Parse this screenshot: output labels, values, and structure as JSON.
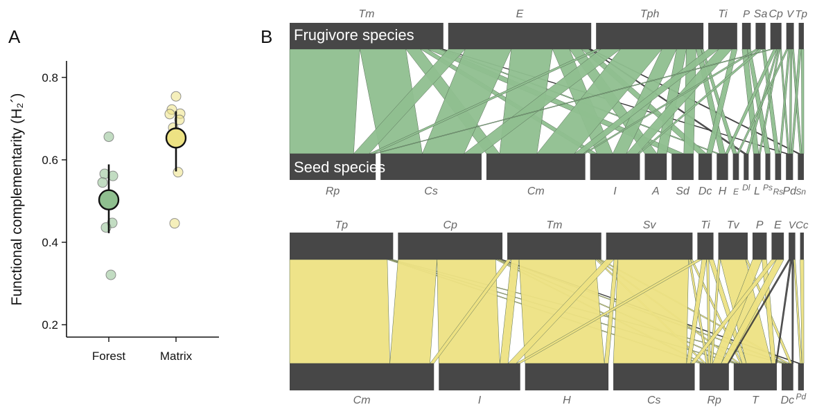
{
  "panel_a_letter": "A",
  "panel_b_letter": "B",
  "frugivore_label": "Frugivore species",
  "seed_label": "Seed species",
  "chart_data": [
    {
      "type": "scatter",
      "ylabel_text": "Functional complementarity",
      "ylabel_math": "(H₂´)",
      "categories": [
        "Forest",
        "Matrix"
      ],
      "ylim": [
        0.17,
        0.84
      ],
      "yticks": [
        0.2,
        0.4,
        0.6,
        0.8
      ],
      "grid": false,
      "series": [
        {
          "category": "Forest",
          "color": "#8fbf8f",
          "points": [
            0.656,
            0.566,
            0.561,
            0.545,
            0.447,
            0.436,
            0.321
          ],
          "mean": 0.503,
          "lower": 0.422,
          "upper": 0.589
        },
        {
          "category": "Matrix",
          "color": "#ede283",
          "points": [
            0.754,
            0.722,
            0.712,
            0.711,
            0.697,
            0.678,
            0.57,
            0.446
          ],
          "mean": 0.653,
          "lower": 0.572,
          "upper": 0.718
        }
      ]
    },
    {
      "type": "bipartite",
      "habitat": "Forest",
      "link_color": "#8fbf8f",
      "top_species": [
        "Tm",
        "E",
        "Tph",
        "Ti",
        "P",
        "Sa",
        "Cp",
        "V",
        "Tp"
      ],
      "bottom_species": [
        "Rp",
        "Cs",
        "Cm",
        "I",
        "A",
        "Sd",
        "Dc",
        "H",
        "E",
        "Dl",
        "L",
        "Ps",
        "Rs",
        "Pd",
        "Sn"
      ],
      "links": [
        [
          "Tm",
          "Rp",
          58
        ],
        [
          "Tm",
          "Cs",
          38
        ],
        [
          "Tm",
          "Cm",
          12
        ],
        [
          "Tm",
          "Sd",
          10
        ],
        [
          "Tm",
          "I",
          6
        ],
        [
          "Tm",
          "H",
          2
        ],
        [
          "Tm",
          "Pd",
          1
        ],
        [
          "E",
          "Cs",
          38
        ],
        [
          "E",
          "Rp",
          14
        ],
        [
          "E",
          "Cm",
          34
        ],
        [
          "E",
          "I",
          14
        ],
        [
          "E",
          "A",
          10
        ],
        [
          "E",
          "Dc",
          6
        ],
        [
          "E",
          "Sn",
          1
        ],
        [
          "E",
          "Dl",
          1
        ],
        [
          "Tph",
          "Cm",
          34
        ],
        [
          "Tph",
          "Cs",
          16
        ],
        [
          "Tph",
          "I",
          12
        ],
        [
          "Tph",
          "A",
          8
        ],
        [
          "Tph",
          "Sd",
          8
        ],
        [
          "Tph",
          "H",
          4
        ],
        [
          "Tph",
          "E",
          2
        ],
        [
          "Tph",
          "Rp",
          4
        ],
        [
          "Ti",
          "I",
          10
        ],
        [
          "Ti",
          "Cm",
          8
        ],
        [
          "Ti",
          "Dc",
          4
        ],
        [
          "P",
          "L",
          3
        ],
        [
          "P",
          "Ps",
          2
        ],
        [
          "Sa",
          "Cm",
          2
        ],
        [
          "Sa",
          "I",
          2
        ],
        [
          "Sa",
          "Rs",
          2
        ],
        [
          "Cp",
          "Rp",
          2
        ],
        [
          "Cp",
          "H",
          2
        ],
        [
          "Cp",
          "Dl",
          1
        ],
        [
          "Cp",
          "L",
          1
        ],
        [
          "Cp",
          "Pd",
          1
        ],
        [
          "V",
          "E",
          1
        ],
        [
          "V",
          "Rs",
          1
        ],
        [
          "V",
          "Pd",
          1
        ],
        [
          "V",
          "Sn",
          1
        ],
        [
          "Tp",
          "Pd",
          1
        ],
        [
          "Tp",
          "Sn",
          1
        ]
      ]
    },
    {
      "type": "bipartite",
      "habitat": "Matrix",
      "link_color": "#ede283",
      "top_species": [
        "Tp",
        "Cp",
        "Tm",
        "Sv",
        "Ti",
        "Tv",
        "P",
        "E",
        "V",
        "Cc"
      ],
      "bottom_species": [
        "Cm",
        "I",
        "H",
        "Cs",
        "Rp",
        "T",
        "Dc",
        "Pd"
      ],
      "links": [
        [
          "Tp",
          "Cm",
          100
        ],
        [
          "Tp",
          "Rp",
          2
        ],
        [
          "Tp",
          "Dc",
          2
        ],
        [
          "Tp",
          "T",
          2
        ],
        [
          "Cp",
          "Cm",
          40
        ],
        [
          "Cp",
          "I",
          60
        ],
        [
          "Cp",
          "Rp",
          2
        ],
        [
          "Cp",
          "T",
          2
        ],
        [
          "Cp",
          "Dc",
          2
        ],
        [
          "Cp",
          "Pd",
          1
        ],
        [
          "Tm",
          "H",
          78
        ],
        [
          "Tm",
          "I",
          8
        ],
        [
          "Tm",
          "Cm",
          4
        ],
        [
          "Tm",
          "Rp",
          2
        ],
        [
          "Tm",
          "Dc",
          2
        ],
        [
          "Tm",
          "T",
          2
        ],
        [
          "Sv",
          "Cs",
          72
        ],
        [
          "Sv",
          "I",
          8
        ],
        [
          "Sv",
          "H",
          4
        ],
        [
          "Sv",
          "Rp",
          2
        ],
        [
          "Sv",
          "T",
          2
        ],
        [
          "Ti",
          "I",
          4
        ],
        [
          "Ti",
          "Cs",
          4
        ],
        [
          "Ti",
          "T",
          4
        ],
        [
          "Ti",
          "Rp",
          2
        ],
        [
          "Tv",
          "T",
          24
        ],
        [
          "Tv",
          "Rp",
          2
        ],
        [
          "Tv",
          "Dc",
          2
        ],
        [
          "P",
          "Rp",
          8
        ],
        [
          "P",
          "T",
          4
        ],
        [
          "E",
          "Rp",
          6
        ],
        [
          "E",
          "Cs",
          4
        ],
        [
          "V",
          "Rp",
          1
        ],
        [
          "V",
          "Dc",
          1
        ],
        [
          "V",
          "T",
          1
        ],
        [
          "V",
          "Pd",
          1
        ],
        [
          "Cc",
          "Pd",
          1
        ]
      ]
    }
  ]
}
